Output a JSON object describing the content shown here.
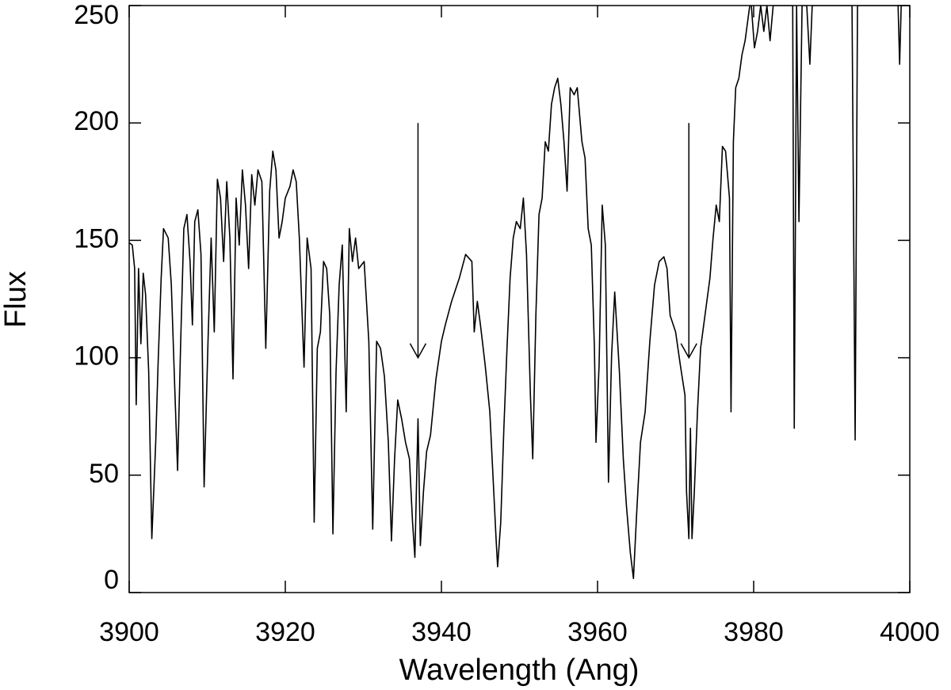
{
  "chart_data": {
    "type": "line",
    "x_label": "Wavelength (Ang)",
    "y_label": "Flux",
    "xlim": [
      3900,
      4000
    ],
    "ylim": [
      0,
      250
    ],
    "xticks": [
      3900,
      3920,
      3940,
      3960,
      3980,
      4000
    ],
    "yticks": [
      0,
      50,
      100,
      150,
      200,
      250
    ],
    "color": "#000000",
    "x": [
      3900.0,
      3900.4,
      3900.7,
      3900.9,
      3901.2,
      3901.5,
      3901.8,
      3902.1,
      3902.5,
      3902.9,
      3903.4,
      3903.7,
      3904.1,
      3904.4,
      3905.0,
      3905.4,
      3905.8,
      3906.2,
      3906.6,
      3907.0,
      3907.4,
      3907.8,
      3908.1,
      3908.4,
      3908.8,
      3909.2,
      3909.6,
      3910.1,
      3910.5,
      3910.9,
      3911.3,
      3911.7,
      3912.1,
      3912.5,
      3912.9,
      3913.3,
      3913.7,
      3914.1,
      3914.5,
      3914.9,
      3915.3,
      3915.7,
      3916.1,
      3916.5,
      3917.0,
      3917.5,
      3918.0,
      3918.4,
      3918.8,
      3919.2,
      3919.6,
      3920.0,
      3920.6,
      3921.0,
      3921.4,
      3921.8,
      3922.4,
      3922.8,
      3923.3,
      3923.7,
      3924.1,
      3924.5,
      3924.9,
      3925.3,
      3925.7,
      3926.1,
      3926.5,
      3926.9,
      3927.3,
      3927.8,
      3928.2,
      3928.6,
      3929.0,
      3929.4,
      3930.1,
      3930.7,
      3931.2,
      3931.7,
      3932.2,
      3932.7,
      3933.2,
      3933.6,
      3934.0,
      3934.4,
      3934.9,
      3935.4,
      3935.9,
      3936.3,
      3936.6,
      3937.0,
      3937.3,
      3937.7,
      3938.1,
      3938.6,
      3939.3,
      3940.0,
      3940.5,
      3941.3,
      3942.3,
      3943.1,
      3943.9,
      3944.2,
      3944.6,
      3945.0,
      3945.6,
      3946.2,
      3946.6,
      3947.0,
      3947.2,
      3947.6,
      3948.0,
      3948.4,
      3948.8,
      3949.2,
      3949.6,
      3950.1,
      3950.5,
      3950.9,
      3951.4,
      3951.7,
      3952.1,
      3952.5,
      3952.9,
      3953.3,
      3953.7,
      3954.1,
      3954.5,
      3954.9,
      3955.3,
      3955.7,
      3956.1,
      3956.5,
      3957.0,
      3957.4,
      3958.0,
      3958.4,
      3958.8,
      3959.2,
      3959.6,
      3959.8,
      3960.2,
      3960.6,
      3961.0,
      3961.4,
      3961.8,
      3962.2,
      3962.8,
      3963.3,
      3963.7,
      3964.2,
      3964.6,
      3965.0,
      3965.5,
      3966.1,
      3966.7,
      3967.3,
      3967.9,
      3968.5,
      3968.9,
      3969.3,
      3970.0,
      3970.6,
      3971.2,
      3971.4,
      3971.7,
      3971.9,
      3972.1,
      3972.4,
      3972.8,
      3973.2,
      3973.6,
      3974.0,
      3974.4,
      3974.8,
      3975.2,
      3975.6,
      3976.0,
      3976.4,
      3976.9,
      3977.1,
      3977.4,
      3977.7,
      3978.1,
      3978.5,
      3978.9,
      3979.3,
      3979.5,
      3979.7,
      3980.1,
      3980.5,
      3980.9,
      3981.3,
      3981.7,
      3982.1,
      3982.5,
      3985.0,
      3985.2,
      3985.5,
      3985.8,
      3986.2,
      3986.8,
      3987.2,
      3987.5,
      3992.6,
      3993.0,
      3993.3,
      3998.5,
      3998.7,
      3998.9,
      4000.0
    ],
    "values": [
      149,
      148,
      138,
      80,
      138,
      106,
      136,
      127,
      94,
      23,
      64,
      97,
      134,
      155,
      151,
      131,
      91,
      52,
      107,
      155,
      161,
      141,
      114,
      158,
      163,
      144,
      45,
      107,
      151,
      111,
      176,
      168,
      141,
      175,
      151,
      91,
      168,
      148,
      180,
      165,
      138,
      178,
      165,
      180,
      175,
      104,
      171,
      188,
      180,
      151,
      158,
      168,
      173,
      180,
      175,
      151,
      96,
      151,
      138,
      30,
      104,
      111,
      141,
      138,
      118,
      25,
      94,
      131,
      148,
      77,
      155,
      141,
      151,
      138,
      141,
      107,
      27,
      107,
      104,
      92,
      64,
      22,
      57,
      82,
      74,
      64,
      57,
      30,
      15,
      74,
      20,
      43,
      60,
      67,
      91,
      107,
      114,
      124,
      134,
      144,
      141,
      111,
      124,
      114,
      97,
      77,
      50,
      23,
      11,
      30,
      70,
      104,
      134,
      151,
      158,
      155,
      168,
      144,
      84,
      57,
      118,
      161,
      168,
      192,
      188,
      208,
      215,
      219,
      208,
      192,
      171,
      215,
      212,
      215,
      192,
      185,
      155,
      148,
      104,
      64,
      97,
      165,
      148,
      47,
      101,
      128,
      94,
      57,
      37,
      17,
      6,
      33,
      64,
      77,
      107,
      131,
      141,
      143,
      138,
      118,
      111,
      97,
      84,
      43,
      23,
      70,
      23,
      43,
      77,
      104,
      114,
      124,
      134,
      151,
      165,
      158,
      190,
      188,
      168,
      77,
      192,
      215,
      219,
      229,
      235,
      245,
      250,
      250,
      232,
      239,
      250,
      239,
      250,
      235,
      250,
      250,
      70,
      250,
      158,
      250,
      250,
      225,
      250,
      250,
      65,
      250,
      250,
      225,
      250,
      250
    ],
    "arrows": [
      {
        "x": 3937.0,
        "from": 200,
        "to": 100
      },
      {
        "x": 3971.7,
        "from": 200,
        "to": 100
      }
    ]
  }
}
